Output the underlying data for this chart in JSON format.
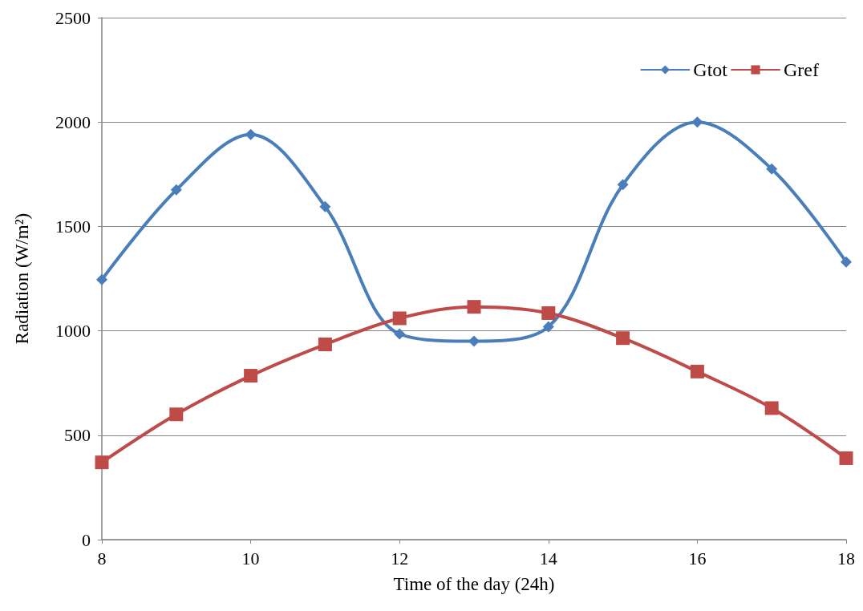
{
  "chart_data": {
    "type": "line",
    "xlabel": "Time of the day (24h)",
    "ylabel": "Radiation (W/m²)",
    "x": [
      8,
      9,
      10,
      11,
      12,
      13,
      14,
      15,
      16,
      17,
      18
    ],
    "series": [
      {
        "name": "Gtot",
        "color": "#4a7ebb",
        "marker": "diamond",
        "values": [
          1245,
          1675,
          1940,
          1595,
          985,
          950,
          1020,
          1700,
          2000,
          1775,
          1330
        ]
      },
      {
        "name": "Gref",
        "color": "#be4b48",
        "marker": "square",
        "values": [
          370,
          600,
          785,
          935,
          1060,
          1115,
          1085,
          965,
          805,
          630,
          390
        ]
      }
    ],
    "xlim": [
      8,
      18
    ],
    "xticks": [
      8,
      10,
      12,
      14,
      16,
      18
    ],
    "ylim": [
      0,
      2500
    ],
    "yticks": [
      0,
      500,
      1000,
      1500,
      2000,
      2500
    ],
    "grid": "y",
    "legend": "top right",
    "line_style": "solid"
  }
}
